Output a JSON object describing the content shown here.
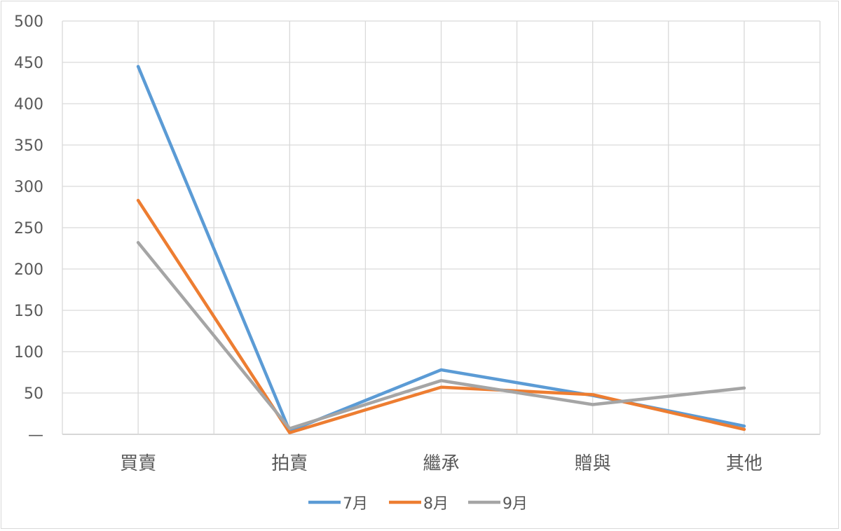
{
  "chart_data": {
    "type": "line",
    "categories": [
      "買賣",
      "拍賣",
      "繼承",
      "贈與",
      "其他"
    ],
    "series": [
      {
        "name": "7月",
        "color": "#5b9bd5",
        "values": [
          445,
          4,
          78,
          47,
          10
        ]
      },
      {
        "name": "8月",
        "color": "#ed7d31",
        "values": [
          283,
          2,
          57,
          48,
          6
        ]
      },
      {
        "name": "9月",
        "color": "#a5a5a5",
        "values": [
          232,
          7,
          65,
          36,
          56
        ]
      }
    ],
    "y_ticks": [
      "500",
      "450",
      "400",
      "350",
      "300",
      "250",
      "200",
      "150",
      "100",
      "50",
      "—"
    ],
    "ylim": [
      0,
      500
    ],
    "grid": true,
    "legend": "bottom"
  }
}
